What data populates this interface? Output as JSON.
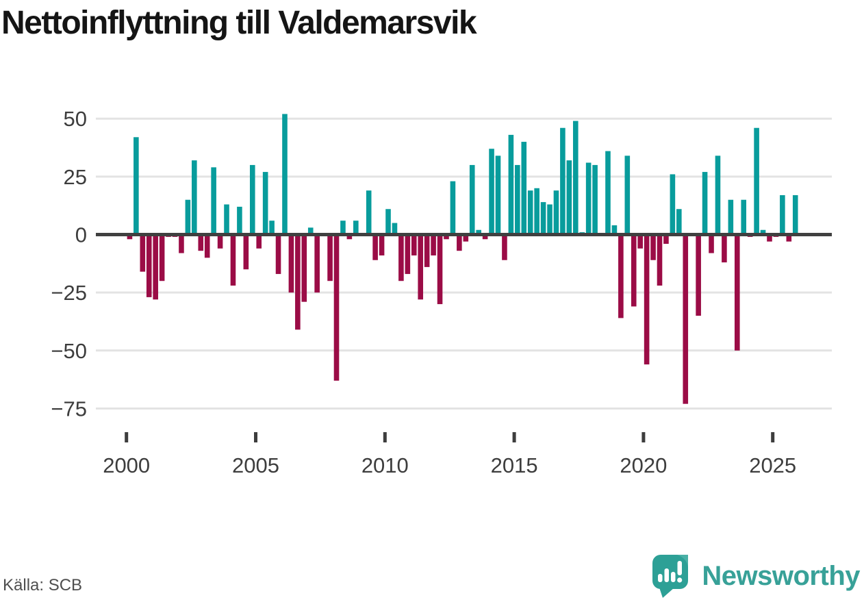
{
  "title": "Nettoinflyttning till Valdemarsvik",
  "source": "Källa: SCB",
  "brand": {
    "name": "Newsworthy"
  },
  "chart_data": {
    "type": "bar",
    "title": "Nettoinflyttning till Valdemarsvik",
    "period": "quarterly",
    "start_quarter": "2000-Q1",
    "end_quarter": "2025-Q4",
    "x_tick_labels": [
      2000,
      2005,
      2010,
      2015,
      2020,
      2025
    ],
    "y_ticks": [
      50,
      25,
      0,
      -25,
      -50,
      -75
    ],
    "ylim": [
      -80,
      57
    ],
    "grid": "horizontal",
    "legend": "none",
    "colors": {
      "positive": "#089c9c",
      "negative": "#9b0c46"
    },
    "values": [
      -2,
      42,
      -16,
      -27,
      -28,
      -20,
      -1,
      -1,
      -8,
      15,
      32,
      -7,
      -10,
      29,
      -6,
      13,
      -22,
      12,
      -15,
      30,
      -6,
      27,
      6,
      -17,
      52,
      -25,
      -41,
      -29,
      3,
      -25,
      0,
      -20,
      -63,
      6,
      -2,
      6,
      0,
      19,
      -11,
      -9,
      11,
      5,
      -20,
      -17,
      -9,
      -28,
      -14,
      -9,
      -30,
      -2,
      23,
      -7,
      -3,
      30,
      2,
      -2,
      37,
      34,
      -11,
      43,
      30,
      40,
      19,
      20,
      14,
      13,
      19,
      46,
      32,
      49,
      1,
      31,
      30,
      0,
      36,
      4,
      -36,
      34,
      -31,
      -6,
      -56,
      -11,
      -22,
      -4,
      26,
      11,
      -73,
      0,
      -35,
      27,
      -8,
      34,
      -12,
      15,
      -50,
      15,
      -1,
      46,
      2,
      -3,
      -1,
      17,
      -3,
      17
    ]
  }
}
